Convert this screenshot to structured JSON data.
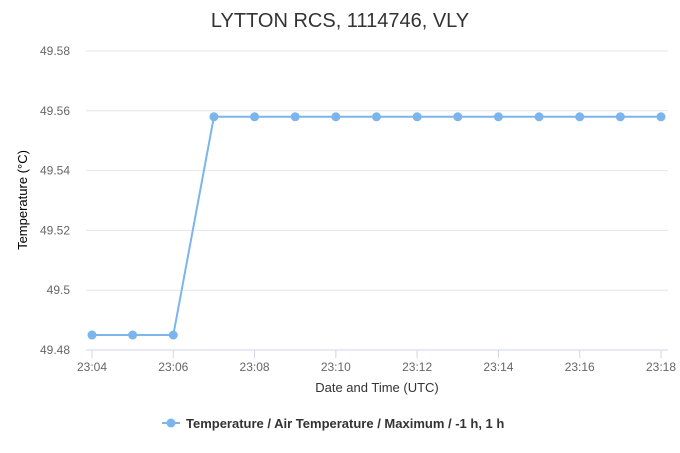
{
  "chart_data": {
    "type": "line",
    "title": "LYTTON RCS, 1114746, VLY",
    "xlabel": "Date and Time (UTC)",
    "ylabel": "Temperature (°C)",
    "x": [
      "23:04",
      "23:05",
      "23:06",
      "23:07",
      "23:08",
      "23:09",
      "23:10",
      "23:11",
      "23:12",
      "23:13",
      "23:14",
      "23:15",
      "23:16",
      "23:17",
      "23:18"
    ],
    "x_tick_labels": [
      "23:04",
      "23:06",
      "23:08",
      "23:10",
      "23:12",
      "23:14",
      "23:16",
      "23:18"
    ],
    "y_tick_labels": [
      "49.48",
      "49.5",
      "49.52",
      "49.54",
      "49.56",
      "49.58"
    ],
    "ylim": [
      49.48,
      49.58
    ],
    "grid": "horizontal",
    "legend_position": "bottom-center",
    "series": [
      {
        "name": "Temperature / Air Temperature / Maximum / -1 h, 1 h",
        "color": "#7cb5ec",
        "values": [
          49.485,
          49.485,
          49.485,
          49.558,
          49.558,
          49.558,
          49.558,
          49.558,
          49.558,
          49.558,
          49.558,
          49.558,
          49.558,
          49.558,
          49.558
        ]
      }
    ]
  }
}
